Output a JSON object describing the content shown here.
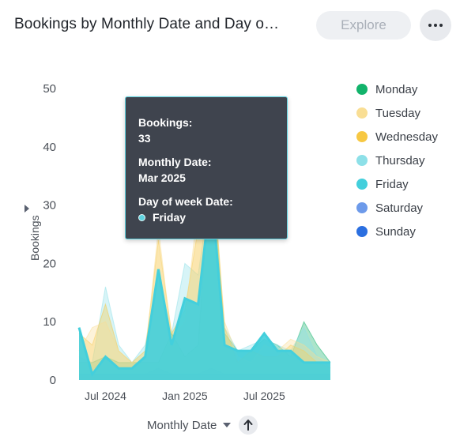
{
  "header": {
    "title": "Bookings by Monthly Date and Day o…",
    "explore_label": "Explore",
    "more_icon": "more-horizontal-icon"
  },
  "axes": {
    "y_title": "Bookings",
    "x_title": "Monthly Date"
  },
  "tooltip": {
    "bookings_label": "Bookings:",
    "bookings_value": "33",
    "date_label": "Monthly Date:",
    "date_value": "Mar 2025",
    "day_label": "Day of week Date:",
    "day_value": "Friday",
    "day_color": "#5fd3e0"
  },
  "chart_data": {
    "type": "area",
    "title": "Bookings by Monthly Date and Day o…",
    "xlabel": "Monthly Date",
    "ylabel": "Bookings",
    "ylim": [
      0,
      50
    ],
    "y_ticks": [
      0,
      10,
      20,
      30,
      40,
      50
    ],
    "x": [
      "2024-05",
      "2024-06",
      "2024-07",
      "2024-08",
      "2024-09",
      "2024-10",
      "2024-11",
      "2024-12",
      "2025-01",
      "2025-02",
      "2025-03",
      "2025-04",
      "2025-05",
      "2025-06",
      "2025-07",
      "2025-08",
      "2025-09",
      "2025-10",
      "2025-11",
      "2025-12"
    ],
    "x_tick_labels": [
      {
        "label": "Jul 2024",
        "x": "2024-07"
      },
      {
        "label": "Jan 2025",
        "x": "2025-01"
      },
      {
        "label": "Jul 2025",
        "x": "2025-07"
      }
    ],
    "legend_position": "right",
    "stacked": false,
    "series": [
      {
        "name": "Monday",
        "color": "#12b36b",
        "values": [
          3,
          3,
          4,
          3,
          3,
          3,
          3,
          8,
          4,
          6,
          38,
          8,
          5,
          5,
          7,
          6,
          4,
          10,
          6,
          3
        ]
      },
      {
        "name": "Tuesday",
        "color": "#f9de94",
        "values": [
          5,
          9,
          10,
          5,
          3,
          4,
          26,
          7,
          10,
          30,
          36,
          10,
          4,
          3,
          6,
          5,
          7,
          6,
          4,
          3
        ]
      },
      {
        "name": "Wednesday",
        "color": "#f7c843",
        "values": [
          8,
          6,
          13,
          5,
          3,
          5,
          24,
          8,
          12,
          26,
          40,
          9,
          3,
          5,
          4,
          4,
          6,
          5,
          3,
          2
        ]
      },
      {
        "name": "Thursday",
        "color": "#8de0e8",
        "values": [
          4,
          3,
          16,
          6,
          3,
          6,
          18,
          8,
          20,
          18,
          34,
          9,
          5,
          6,
          7,
          6,
          5,
          9,
          4,
          2
        ]
      },
      {
        "name": "Friday",
        "color": "#43cfdc",
        "values": [
          9,
          1,
          4,
          2,
          2,
          4,
          19,
          6,
          14,
          13,
          33,
          6,
          5,
          5,
          8,
          5,
          5,
          3,
          3,
          3
        ]
      },
      {
        "name": "Saturday",
        "color": "#6d9aea",
        "values": [
          1,
          1,
          1,
          1,
          1,
          1,
          2,
          1,
          1,
          1,
          2,
          1,
          1,
          1,
          1,
          1,
          1,
          1,
          1,
          1
        ]
      },
      {
        "name": "Sunday",
        "color": "#2b6fe0",
        "values": [
          1,
          1,
          1,
          1,
          1,
          1,
          1,
          1,
          1,
          1,
          1,
          1,
          1,
          1,
          1,
          1,
          1,
          1,
          1,
          1
        ]
      }
    ],
    "highlight": {
      "series": "Friday",
      "x": "2025-03",
      "value": 33
    }
  }
}
